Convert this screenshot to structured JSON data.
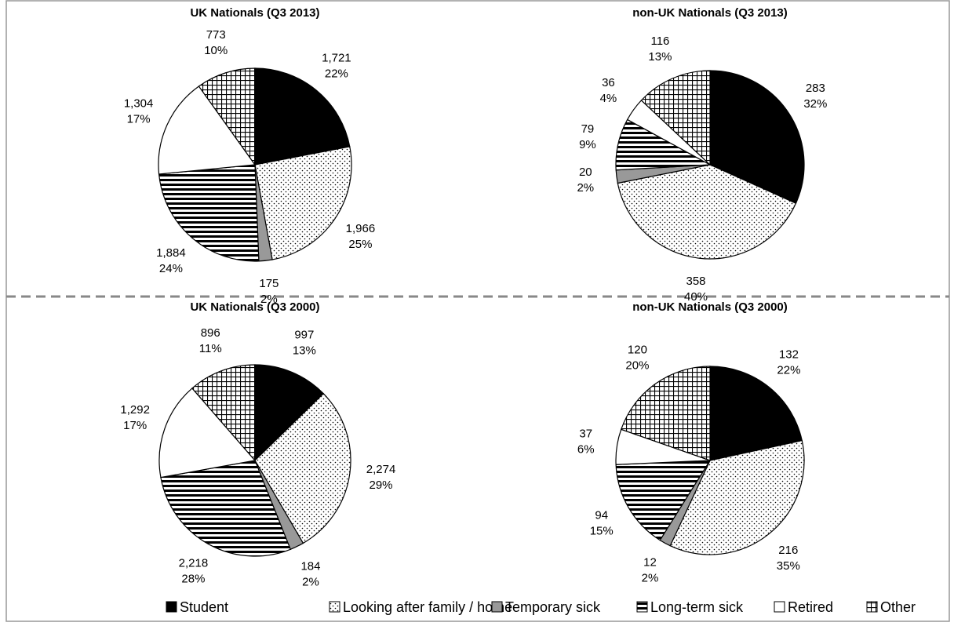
{
  "chart_data": [
    {
      "type": "pie",
      "title": "UK Nationals (Q3 2013)",
      "values": [
        1721,
        1966,
        175,
        1884,
        1304,
        773
      ],
      "value_labels": [
        "1,721",
        "1,966",
        "175",
        "1,884",
        "1,304",
        "773"
      ],
      "percent_labels": [
        "22%",
        "25%",
        "2%",
        "24%",
        "17%",
        "10%"
      ]
    },
    {
      "type": "pie",
      "title": "non-UK Nationals (Q3 2013)",
      "values": [
        283,
        358,
        20,
        79,
        36,
        116
      ],
      "value_labels": [
        "283",
        "358",
        "20",
        "79",
        "36",
        "116"
      ],
      "percent_labels": [
        "32%",
        "40%",
        "2%",
        "9%",
        "4%",
        "13%"
      ]
    },
    {
      "type": "pie",
      "title": "UK Nationals (Q3 2000)",
      "values": [
        997,
        2274,
        184,
        2218,
        1292,
        896
      ],
      "value_labels": [
        "997",
        "2,274",
        "184",
        "2,218",
        "1,292",
        "896"
      ],
      "percent_labels": [
        "13%",
        "29%",
        "2%",
        "28%",
        "17%",
        "11%"
      ]
    },
    {
      "type": "pie",
      "title": "non-UK Nationals (Q3 2000)",
      "values": [
        132,
        216,
        12,
        94,
        37,
        120
      ],
      "value_labels": [
        "132",
        "216",
        "12",
        "94",
        "37",
        "120"
      ],
      "percent_labels": [
        "22%",
        "35%",
        "2%",
        "15%",
        "6%",
        "20%"
      ]
    }
  ],
  "legend": {
    "entries": [
      "Student",
      "Looking after family / home",
      "Temporary sick",
      "Long-term sick",
      "Retired",
      "Other"
    ],
    "patterns": [
      "#000000",
      "dots",
      "#999999",
      "stripes",
      "#ffffff",
      "grid"
    ]
  }
}
